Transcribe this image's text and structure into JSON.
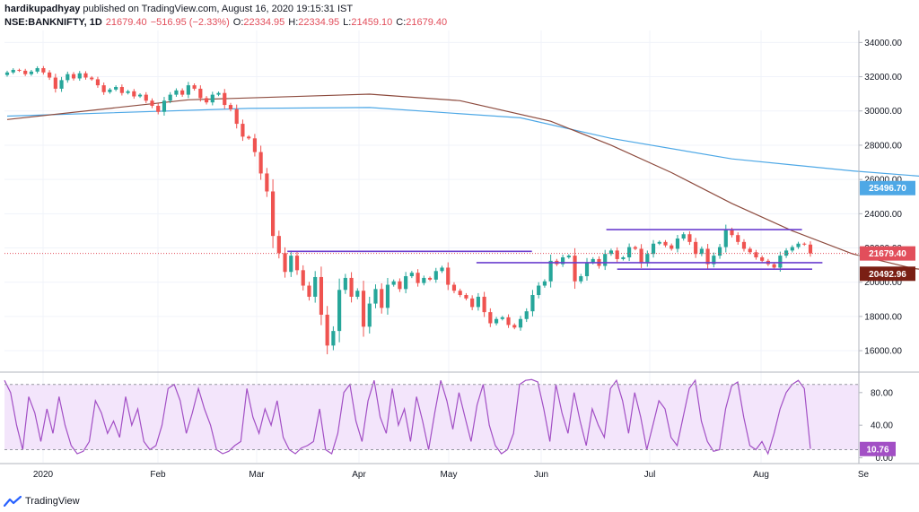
{
  "header": {
    "author": "hardikupadhyay",
    "published_text": "published on TradingView.com, August 16, 2020 19:15:31 IST",
    "symbol": "NSE:BANKNIFTY, 1D",
    "last": "21679.40",
    "change": "−516.95 (−2.33%)",
    "o_label": "O:",
    "o_value": "22334.95",
    "h_label": "H:",
    "h_value": "22334.95",
    "l_label": "L:",
    "l_value": "21459.10",
    "c_label": "C:",
    "c_value": "21679.40"
  },
  "footer": {
    "brand": "TradingView",
    "logo_icon": "tradingview-logo-icon"
  },
  "colors": {
    "up": "#26a69a",
    "down": "#ef5350",
    "ma_fast": "#8d4b3e",
    "ma_slow": "#4ea8e6",
    "trend": "#6c3fcf",
    "rsi_line": "#a24fc5",
    "rsi_band": "#f3e5fb",
    "last_price": "#e24e5b"
  },
  "chart_data": [
    {
      "type": "candlestick",
      "title": "NSE:BANKNIFTY, 1D",
      "x_tick_labels": [
        "2020",
        "Feb",
        "Mar",
        "Apr",
        "May",
        "Jun",
        "Jul",
        "Aug",
        "Se"
      ],
      "y_tick_labels": [
        "34000.00",
        "32000.00",
        "30000.00",
        "28000.00",
        "26000.00",
        "24000.00",
        "22000.00",
        "20000.00",
        "18000.00",
        "16000.00"
      ],
      "ylim": [
        14800,
        34700
      ],
      "grid": true,
      "price_labels": [
        {
          "name": "MA slow",
          "value": "25496.70"
        },
        {
          "name": "last close",
          "value": "21679.40"
        },
        {
          "name": "MA fast",
          "value": "20492.96"
        }
      ],
      "closes": [
        32250,
        32400,
        32350,
        32150,
        32300,
        32500,
        32250,
        31950,
        31300,
        31800,
        32150,
        31900,
        32200,
        31950,
        31850,
        31500,
        31100,
        31250,
        31400,
        31050,
        31150,
        30850,
        30950,
        30600,
        30300,
        29950,
        30600,
        30950,
        31200,
        30950,
        31500,
        31300,
        30750,
        30500,
        30950,
        31050,
        30350,
        30100,
        29250,
        28500,
        28400,
        27600,
        26350,
        25300,
        22700,
        21700,
        20600,
        21550,
        20700,
        19800,
        19150,
        20300,
        18100,
        16300,
        17150,
        19550,
        20250,
        19150,
        19500,
        17400,
        18750,
        19600,
        18500,
        19850,
        20050,
        19600,
        20350,
        20550,
        19950,
        20250,
        20150,
        20650,
        20850,
        19850,
        19500,
        19250,
        19050,
        18550,
        19150,
        18250,
        17600,
        17850,
        17950,
        17500,
        17350,
        17850,
        18300,
        19250,
        19800,
        20050,
        21250,
        21050,
        21450,
        21550,
        20050,
        20350,
        21150,
        21350,
        20950,
        21650,
        21850,
        21350,
        21450,
        22050,
        21950,
        21100,
        21650,
        22250,
        22350,
        22150,
        21950,
        22550,
        22800,
        22350,
        21650,
        21950,
        21050,
        21550,
        22050,
        23050,
        22750,
        22350,
        21950,
        21750,
        21450,
        21250,
        21050,
        20850,
        21550,
        21850,
        22050,
        22250,
        22196,
        21679
      ],
      "ma_fast": [
        [
          0,
          29500
        ],
        [
          30,
          30650
        ],
        [
          60,
          30980
        ],
        [
          75,
          30600
        ],
        [
          90,
          29400
        ],
        [
          100,
          28000
        ],
        [
          110,
          26400
        ],
        [
          120,
          24600
        ],
        [
          130,
          23000
        ],
        [
          140,
          21650
        ],
        [
          150,
          20800
        ],
        [
          160,
          20400
        ],
        [
          167,
          20460
        ]
      ],
      "ma_slow": [
        [
          0,
          29700
        ],
        [
          40,
          30150
        ],
        [
          60,
          30200
        ],
        [
          85,
          29600
        ],
        [
          100,
          28400
        ],
        [
          120,
          27200
        ],
        [
          140,
          26500
        ],
        [
          160,
          25950
        ],
        [
          167,
          25500
        ]
      ],
      "trendlines": [
        {
          "y": 21800,
          "from": 2.3,
          "to": 4.9
        },
        {
          "y": 21140,
          "from": 4.3,
          "to": 7.6
        },
        {
          "y": 23070,
          "from": 5.6,
          "to": 7.4
        },
        {
          "y": 20760,
          "from": 5.7,
          "to": 7.5
        }
      ]
    },
    {
      "type": "line",
      "title": "RSI",
      "y_tick_labels": [
        "80.00",
        "40.00",
        "0.00"
      ],
      "ylim": [
        -6,
        104
      ],
      "band": [
        90,
        10
      ],
      "last_label": "10.76",
      "values": [
        95,
        80,
        40,
        10,
        75,
        55,
        20,
        60,
        30,
        75,
        40,
        15,
        5,
        8,
        20,
        70,
        55,
        30,
        45,
        25,
        75,
        40,
        60,
        20,
        10,
        15,
        40,
        85,
        90,
        70,
        30,
        55,
        85,
        60,
        40,
        10,
        5,
        8,
        15,
        20,
        85,
        50,
        30,
        60,
        40,
        70,
        25,
        10,
        5,
        12,
        15,
        20,
        60,
        10,
        5,
        30,
        80,
        90,
        45,
        20,
        70,
        95,
        50,
        30,
        85,
        40,
        60,
        20,
        75,
        45,
        10,
        55,
        95,
        70,
        35,
        80,
        50,
        20,
        65,
        90,
        40,
        15,
        5,
        10,
        30,
        90,
        95,
        96,
        93,
        60,
        20,
        90,
        55,
        30,
        80,
        45,
        15,
        60,
        40,
        25,
        85,
        95,
        70,
        30,
        80,
        50,
        10,
        40,
        70,
        60,
        25,
        15,
        50,
        85,
        95,
        45,
        20,
        8,
        10,
        60,
        88,
        93,
        50,
        15,
        10,
        20,
        5,
        30,
        60,
        80,
        90,
        95,
        85,
        11
      ]
    }
  ]
}
